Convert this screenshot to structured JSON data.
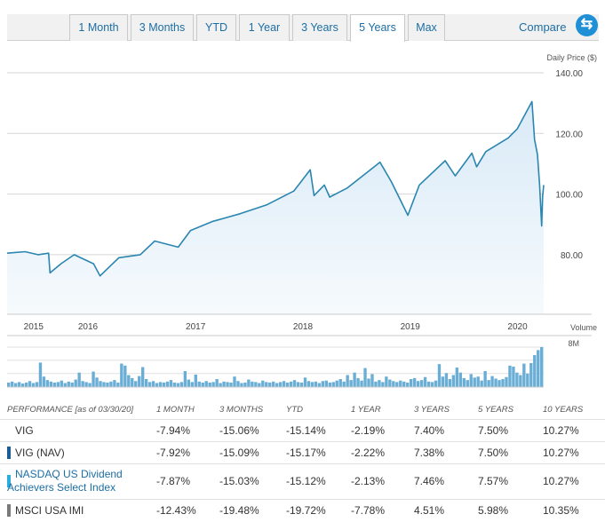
{
  "tabs": [
    {
      "label": "1 Month",
      "active": false
    },
    {
      "label": "3 Months",
      "active": false
    },
    {
      "label": "YTD",
      "active": false
    },
    {
      "label": "1 Year",
      "active": false
    },
    {
      "label": "3 Years",
      "active": false
    },
    {
      "label": "5 Years",
      "active": true
    },
    {
      "label": "Max",
      "active": false
    }
  ],
  "compare_label": "Compare",
  "compare_icon": "swap-arrows-icon",
  "colors": {
    "line": "#2a86b0",
    "area_top": "#d9eaf7",
    "area_bottom": "#f6fafd",
    "volume": "#6aaed6",
    "accent": "#1f8fd6",
    "link": "#1c6ea4"
  },
  "chart_data": [
    {
      "type": "area",
      "ylabel": "Daily Price ($)",
      "ylim": [
        60,
        140
      ],
      "y_ticks": [
        "140.00",
        "120.00",
        "100.00",
        "80.00"
      ],
      "y_tick_values": [
        140,
        120,
        100,
        80
      ],
      "x_ticks": [
        "2015",
        "2016",
        "2017",
        "2018",
        "2019",
        "2020"
      ],
      "x_tick_dates": [
        "2015-06-30",
        "2016-01-01",
        "2017-01-01",
        "2018-01-01",
        "2019-01-01",
        "2020-01-01"
      ],
      "grid": true,
      "series": [
        {
          "x": [
            "2015-04-01",
            "2015-06-01",
            "2015-07-15",
            "2015-08-20",
            "2015-08-25",
            "2015-10-01",
            "2015-11-15",
            "2016-01-20",
            "2016-02-11",
            "2016-04-15",
            "2016-06-27",
            "2016-08-15",
            "2016-11-03",
            "2016-12-15",
            "2017-03-01",
            "2017-06-01",
            "2017-09-01",
            "2017-12-01",
            "2018-01-26",
            "2018-02-08",
            "2018-03-15",
            "2018-04-02",
            "2018-06-01",
            "2018-09-20",
            "2018-10-29",
            "2018-12-24",
            "2019-02-01",
            "2019-04-30",
            "2019-06-03",
            "2019-07-30",
            "2019-08-15",
            "2019-09-15",
            "2019-11-30",
            "2019-12-31",
            "2020-02-19",
            "2020-02-28",
            "2020-03-09",
            "2020-03-16",
            "2020-03-23",
            "2020-03-26",
            "2020-03-30"
          ],
          "values": [
            80.5,
            81.0,
            80.0,
            80.5,
            74.0,
            77.0,
            80.0,
            77.0,
            73.0,
            79.0,
            80.0,
            84.5,
            82.5,
            88.0,
            91.0,
            93.5,
            96.5,
            101.0,
            108.0,
            99.5,
            103.0,
            99.0,
            102.0,
            110.5,
            104.0,
            93.0,
            103.0,
            111.0,
            106.0,
            113.5,
            109.0,
            114.0,
            118.5,
            121.5,
            130.5,
            118.0,
            113.0,
            103.0,
            89.5,
            99.0,
            103.0
          ]
        }
      ]
    },
    {
      "type": "bar",
      "ylabel": "Volume",
      "y_ticks": [
        "8M"
      ],
      "ylim": [
        0,
        8
      ],
      "note": "relative daily volume, millions",
      "values": [
        0.9,
        1.1,
        0.8,
        1.0,
        0.7,
        0.9,
        1.2,
        0.8,
        1.0,
        4.9,
        2.1,
        1.4,
        1.1,
        0.9,
        1.0,
        1.3,
        0.8,
        1.1,
        0.9,
        1.5,
        2.9,
        1.2,
        1.0,
        0.8,
        3.1,
        1.9,
        1.2,
        1.0,
        0.9,
        1.1,
        1.4,
        0.9,
        4.7,
        4.3,
        2.4,
        1.8,
        1.2,
        2.2,
        4.0,
        1.6,
        1.0,
        1.2,
        0.8,
        1.0,
        0.9,
        1.1,
        1.4,
        0.9,
        0.8,
        1.0,
        3.2,
        1.5,
        1.0,
        2.5,
        1.1,
        0.9,
        1.2,
        0.9,
        1.0,
        1.6,
        0.8,
        1.1,
        1.0,
        0.9,
        2.1,
        1.2,
        0.8,
        0.9,
        1.5,
        1.1,
        1.0,
        0.8,
        1.3,
        1.0,
        0.9,
        1.1,
        0.8,
        1.0,
        1.2,
        0.9,
        1.1,
        1.4,
        1.0,
        0.9,
        1.9,
        1.2,
        1.0,
        1.1,
        0.8,
        1.2,
        1.3,
        0.9,
        1.0,
        1.3,
        1.6,
        1.1,
        2.4,
        1.4,
        2.9,
        1.8,
        1.3,
        3.8,
        1.7,
        2.6,
        1.1,
        1.4,
        1.0,
        2.1,
        1.5,
        1.2,
        1.0,
        1.3,
        1.1,
        0.9,
        1.6,
        1.8,
        1.2,
        1.4,
        2.0,
        1.1,
        1.0,
        1.3,
        4.6,
        2.1,
        2.8,
        1.6,
        2.4,
        3.9,
        2.9,
        1.8,
        1.4,
        2.6,
        1.9,
        2.1,
        1.3,
        3.2,
        1.4,
        2.2,
        1.7,
        1.4,
        1.6,
        2.0,
        4.3,
        4.1,
        2.9,
        2.4,
        4.7,
        2.7,
        4.8,
        6.4,
        7.4,
        8.0
      ]
    }
  ],
  "table": {
    "header": {
      "performance": "PERFORMANCE",
      "as_of": "[as of 03/30/20]",
      "columns": [
        "1 MONTH",
        "3 MONTHS",
        "YTD",
        "1 YEAR",
        "3 YEARS",
        "5 YEARS",
        "10 YEARS"
      ]
    },
    "rows": [
      {
        "name": "VIG",
        "color": "",
        "link": false,
        "values": [
          "-7.94%",
          "-15.06%",
          "-15.14%",
          "-2.19%",
          "7.40%",
          "7.50%",
          "10.27%"
        ]
      },
      {
        "name": "VIG (NAV)",
        "color": "#1c5d96",
        "link": false,
        "values": [
          "-7.92%",
          "-15.09%",
          "-15.17%",
          "-2.22%",
          "7.38%",
          "7.50%",
          "10.27%"
        ]
      },
      {
        "name_lines": [
          "NASDAQ US Dividend",
          "Achievers Select Index"
        ],
        "color": "#2aaee0",
        "link": true,
        "values": [
          "-7.87%",
          "-15.03%",
          "-15.12%",
          "-2.13%",
          "7.46%",
          "7.57%",
          "10.27%"
        ]
      },
      {
        "name": "MSCI USA IMI",
        "color": "#7a7a7a",
        "link": false,
        "values": [
          "-12.43%",
          "-19.48%",
          "-19.72%",
          "-7.78%",
          "4.51%",
          "5.98%",
          "10.35%"
        ]
      }
    ]
  }
}
